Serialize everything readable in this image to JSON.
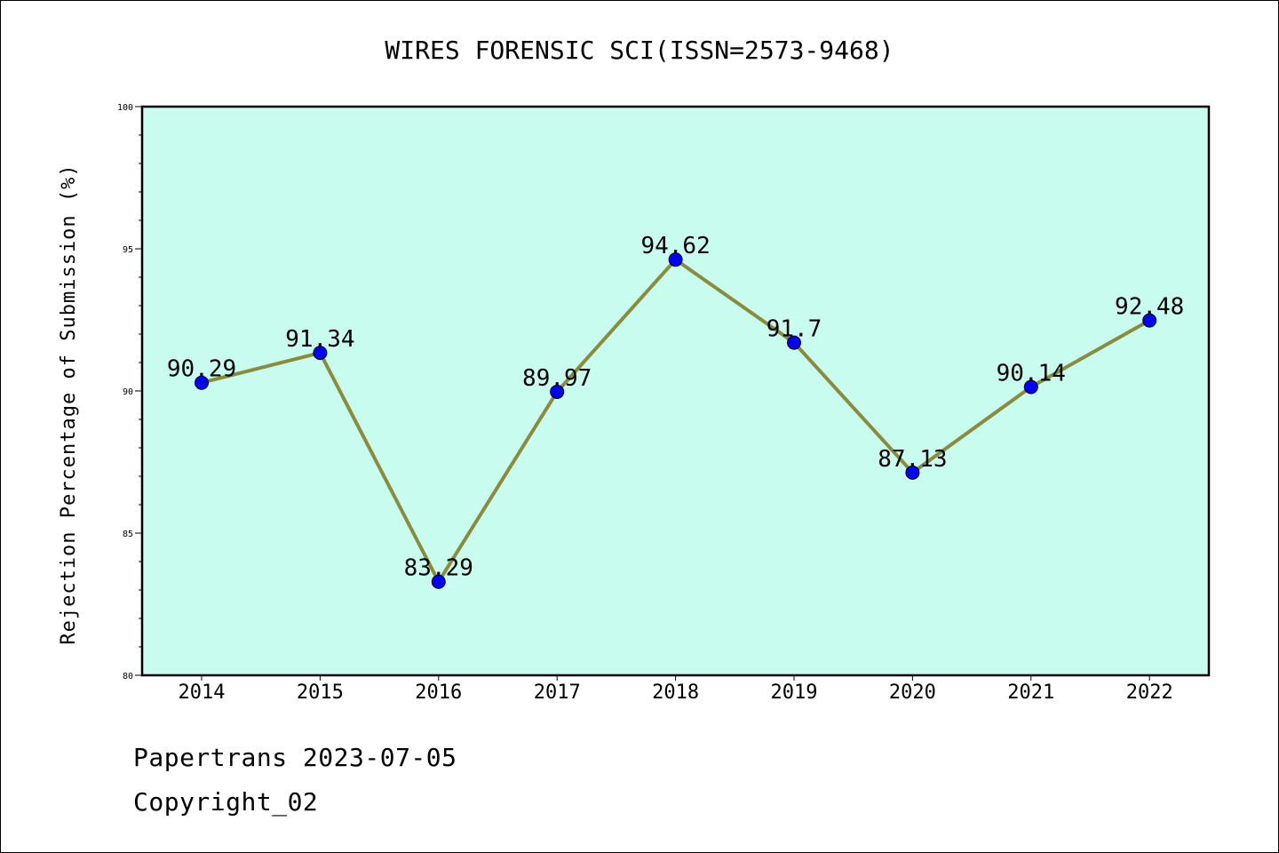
{
  "chart_data": {
    "type": "line",
    "title": "WIRES FORENSIC SCI(ISSN=2573-9468)",
    "xlabel": "",
    "ylabel": "Rejection Percentage of Submission (%)",
    "categories": [
      "2014",
      "2015",
      "2016",
      "2017",
      "2018",
      "2019",
      "2020",
      "2021",
      "2022"
    ],
    "values": [
      90.29,
      91.34,
      83.29,
      89.97,
      94.62,
      91.7,
      87.13,
      90.14,
      92.48
    ],
    "data_labels": [
      "90.29",
      "91.34",
      "83.29",
      "89.97",
      "94.62",
      "91.7",
      "87.13",
      "90.14",
      "92.48"
    ],
    "ylim": [
      80,
      100
    ],
    "yticks": [
      80,
      85,
      90,
      95,
      100
    ],
    "grid": false,
    "legend": "none",
    "colors": {
      "plot_background": "#c8fcee",
      "line": "#8b8b3c",
      "marker": "#0000ff",
      "axis": "#000000"
    }
  },
  "footer": {
    "line1": "Papertrans 2023-07-05",
    "line2": "Copyright_02"
  }
}
